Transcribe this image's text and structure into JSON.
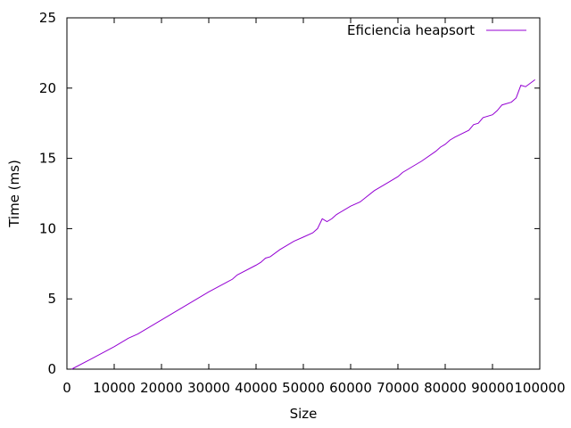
{
  "chart_data": {
    "type": "line",
    "xlabel": "Size",
    "ylabel": "Time (ms)",
    "xlim": [
      0,
      100000
    ],
    "ylim": [
      0,
      25
    ],
    "xticks": [
      0,
      10000,
      20000,
      30000,
      40000,
      50000,
      60000,
      70000,
      80000,
      90000,
      100000
    ],
    "yticks": [
      0,
      5,
      10,
      15,
      20,
      25
    ],
    "grid": false,
    "legend_position": "top-right",
    "series": [
      {
        "name": "Eficiencia heapsort",
        "color": "#9400d3",
        "x": [
          1000,
          5000,
          10000,
          13000,
          15000,
          20000,
          25000,
          30000,
          35000,
          36000,
          40000,
          41000,
          42000,
          43000,
          45000,
          48000,
          50000,
          52000,
          53000,
          54000,
          55000,
          56000,
          57000,
          60000,
          62000,
          65000,
          68000,
          70000,
          71000,
          75000,
          78000,
          79000,
          80000,
          81000,
          82000,
          85000,
          86000,
          87000,
          88000,
          90000,
          91000,
          92000,
          94000,
          95000,
          96000,
          97000,
          99000
        ],
        "y": [
          0.0,
          0.7,
          1.6,
          2.2,
          2.5,
          3.5,
          4.5,
          5.5,
          6.4,
          6.7,
          7.4,
          7.6,
          7.9,
          8.0,
          8.5,
          9.1,
          9.4,
          9.7,
          10.0,
          10.7,
          10.5,
          10.7,
          11.0,
          11.6,
          11.9,
          12.7,
          13.3,
          13.7,
          14.0,
          14.8,
          15.5,
          15.8,
          16.0,
          16.3,
          16.5,
          17.0,
          17.4,
          17.5,
          17.9,
          18.1,
          18.4,
          18.8,
          19.0,
          19.3,
          20.2,
          20.1,
          20.6
        ]
      }
    ]
  }
}
